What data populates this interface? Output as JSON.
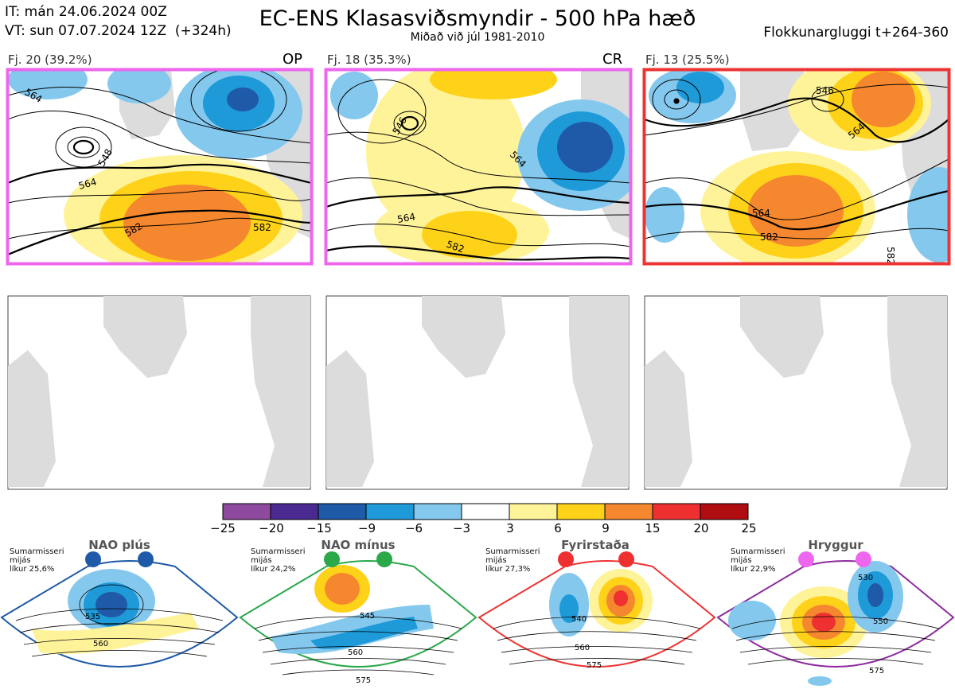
{
  "header": {
    "it_line": "IT: mán 24.06.2024 00Z",
    "vt_line": "VT: sun 07.07.2024 12Z  (+324h)",
    "title": "EC-ENS Klasasviðsmyndir - 500 hPa hæð",
    "subtitle": "Miðað við júl 1981-2010",
    "window": "Flokkunargluggi t+264-360"
  },
  "panels": [
    {
      "label": "Fj. 20 (39.2%)",
      "tag": "OP",
      "border_color": "#ee66ee",
      "contours": [
        "564",
        "548",
        "564",
        "582",
        "582"
      ]
    },
    {
      "label": "Fj. 18 (35.3%)",
      "tag": "CR",
      "border_color": "#ee66ee",
      "contours": [
        "564",
        "546",
        "564",
        "564",
        "582",
        "582"
      ]
    },
    {
      "label": "Fj. 13 (25.5%)",
      "tag": "",
      "border_color": "#ee3333",
      "contours": [
        "546",
        "564",
        "564",
        "582",
        "582"
      ]
    }
  ],
  "colorbar": {
    "ticks": [
      "−25",
      "−20",
      "−15",
      "−9",
      "−6",
      "−3",
      "3",
      "6",
      "9",
      "15",
      "20",
      "25"
    ],
    "colors": [
      "#8e4a9e",
      "#4a2a90",
      "#1f5aa8",
      "#1e9ad8",
      "#85c8ee",
      "#ffffff",
      "#fff39a",
      "#ffd21a",
      "#f5882e",
      "#ee3030",
      "#b00d12"
    ]
  },
  "regimes": [
    {
      "name": "NAO plús",
      "info": "Sumarmisseri\nmijás\nlíkur 25,6%",
      "color": "#1f5aa8",
      "contours": [
        "535",
        "560"
      ]
    },
    {
      "name": "NAO mínus",
      "info": "Sumarmisseri\nmijás\nlíkur 24,2%",
      "color": "#2aa84a",
      "contours": [
        "545",
        "560",
        "575"
      ]
    },
    {
      "name": "Fyrirstaða",
      "info": "Sumarmisseri\nmijás\nlíkur 27,3%",
      "color": "#ee3333",
      "contours": [
        "540",
        "560",
        "575"
      ]
    },
    {
      "name": "Hryggur",
      "info": "Sumarmisseri\nmijás\nlíkur 22,9%",
      "color": "#ee66ee",
      "contours": [
        "530",
        "550",
        "575"
      ]
    }
  ]
}
